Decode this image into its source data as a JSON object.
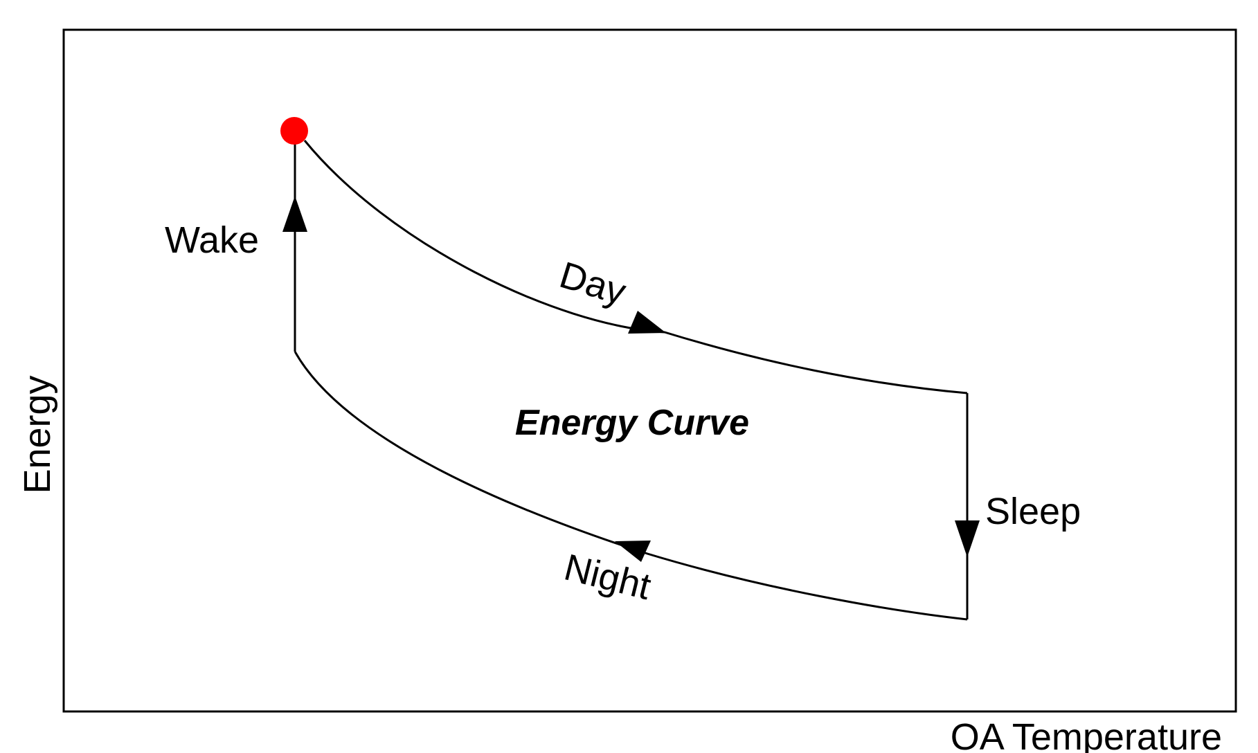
{
  "diagram": {
    "title": "Energy Curve",
    "x_axis_label": "OA Temperature",
    "y_axis_label": "Energy",
    "phases": {
      "wake": "Wake",
      "day": "Day",
      "sleep": "Sleep",
      "night": "Night"
    },
    "start_marker_color": "#ff0000",
    "line_color": "#000000"
  }
}
